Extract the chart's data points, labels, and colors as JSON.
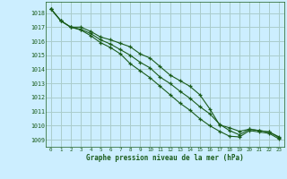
{
  "background_color": "#cceeff",
  "grid_color": "#aacccc",
  "line_color": "#1a5c1a",
  "xlabel": "Graphe pression niveau de la mer (hPa)",
  "ylim": [
    1008.5,
    1018.8
  ],
  "xlim": [
    -0.5,
    23.5
  ],
  "yticks": [
    1009,
    1010,
    1011,
    1012,
    1013,
    1014,
    1015,
    1016,
    1017,
    1018
  ],
  "xticks": [
    0,
    1,
    2,
    3,
    4,
    5,
    6,
    7,
    8,
    9,
    10,
    11,
    12,
    13,
    14,
    15,
    16,
    17,
    18,
    19,
    20,
    21,
    22,
    23
  ],
  "line1": [
    1018.3,
    1017.45,
    1017.0,
    1017.0,
    1016.7,
    1016.3,
    1016.1,
    1015.85,
    1015.6,
    1015.1,
    1014.8,
    1014.2,
    1013.6,
    1013.2,
    1012.8,
    1012.2,
    1011.2,
    1010.05,
    1009.85,
    1009.6,
    1009.75,
    1009.65,
    1009.55,
    1009.2
  ],
  "line2": [
    1018.3,
    1017.45,
    1017.0,
    1016.85,
    1016.55,
    1016.1,
    1015.8,
    1015.4,
    1015.0,
    1014.5,
    1014.1,
    1013.45,
    1013.0,
    1012.45,
    1011.95,
    1011.35,
    1010.85,
    1010.1,
    1009.65,
    1009.35,
    1009.75,
    1009.65,
    1009.55,
    1009.15
  ],
  "line3": [
    1018.3,
    1017.45,
    1017.0,
    1016.8,
    1016.4,
    1015.9,
    1015.55,
    1015.1,
    1014.4,
    1013.9,
    1013.4,
    1012.8,
    1012.2,
    1011.6,
    1011.1,
    1010.5,
    1010.0,
    1009.6,
    1009.25,
    1009.2,
    1009.65,
    1009.55,
    1009.45,
    1009.05
  ]
}
